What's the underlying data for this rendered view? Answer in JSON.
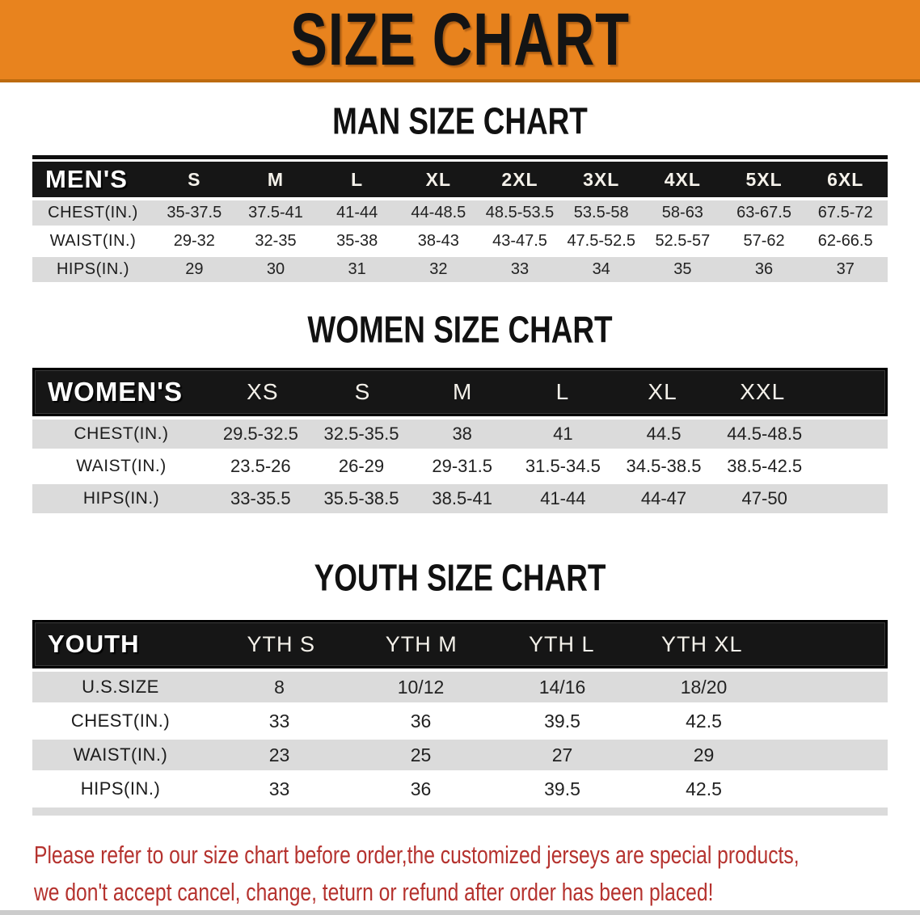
{
  "banner": {
    "title": "SIZE CHART"
  },
  "colors": {
    "banner_orange": "#E8831E",
    "banner_edge": "#BD6B0F",
    "table_header_black": "#161616",
    "row_gray": "#DBDBDB",
    "body_text": "#1C1C1C",
    "disclaimer_red": "#B5322E"
  },
  "sections": [
    {
      "title": "MAN SIZE CHART",
      "label": "MEN'S",
      "columns": [
        "S",
        "M",
        "L",
        "XL",
        "2XL",
        "3XL",
        "4XL",
        "5XL",
        "6XL"
      ],
      "rows": [
        {
          "label": "CHEST(IN.)",
          "values": [
            "35-37.5",
            "37.5-41",
            "41-44",
            "44-48.5",
            "48.5-53.5",
            "53.5-58",
            "58-63",
            "63-67.5",
            "67.5-72"
          ]
        },
        {
          "label": "WAIST(IN.)",
          "values": [
            "29-32",
            "32-35",
            "35-38",
            "38-43",
            "43-47.5",
            "47.5-52.5",
            "52.5-57",
            "57-62",
            "62-66.5"
          ]
        },
        {
          "label": "HIPS(IN.)",
          "values": [
            "29",
            "30",
            "31",
            "32",
            "33",
            "34",
            "35",
            "36",
            "37"
          ]
        }
      ]
    },
    {
      "title": "WOMEN SIZE CHART",
      "label": "WOMEN'S",
      "columns": [
        "XS",
        "S",
        "M",
        "L",
        "XL",
        "XXL"
      ],
      "rows": [
        {
          "label": "CHEST(IN.)",
          "values": [
            "29.5-32.5",
            "32.5-35.5",
            "38",
            "41",
            "44.5",
            "44.5-48.5"
          ]
        },
        {
          "label": "WAIST(IN.)",
          "values": [
            "23.5-26",
            "26-29",
            "29-31.5",
            "31.5-34.5",
            "34.5-38.5",
            "38.5-42.5"
          ]
        },
        {
          "label": "HIPS(IN.)",
          "values": [
            "33-35.5",
            "35.5-38.5",
            "38.5-41",
            "41-44",
            "44-47",
            "47-50"
          ]
        }
      ]
    },
    {
      "title": "YOUTH SIZE CHART",
      "label": "YOUTH",
      "columns": [
        "YTH S",
        "YTH M",
        "YTH L",
        "YTH XL"
      ],
      "rows": [
        {
          "label": "U.S.SIZE",
          "values": [
            "8",
            "10/12",
            "14/16",
            "18/20"
          ]
        },
        {
          "label": "CHEST(IN.)",
          "values": [
            "33",
            "36",
            "39.5",
            "42.5"
          ]
        },
        {
          "label": "WAIST(IN.)",
          "values": [
            "23",
            "25",
            "27",
            "29"
          ]
        },
        {
          "label": "HIPS(IN.)",
          "values": [
            "33",
            "36",
            "39.5",
            "42.5"
          ]
        }
      ]
    }
  ],
  "disclaimer": {
    "lines": [
      "Please refer to our size chart before order,the customized jerseys are special products,",
      "we don't accept cancel, change, teturn or refund after order has been placed!"
    ]
  }
}
